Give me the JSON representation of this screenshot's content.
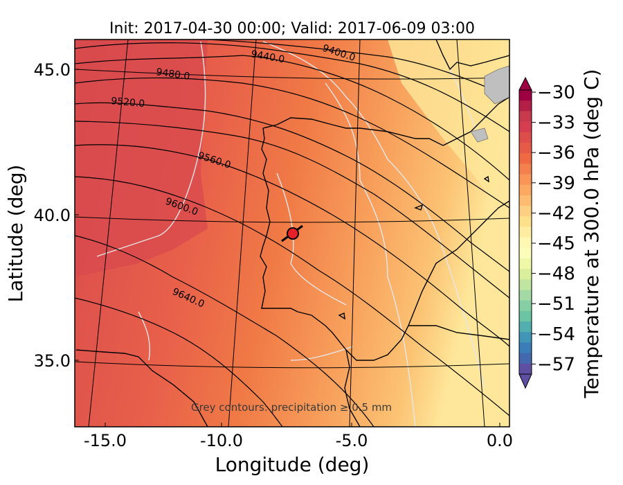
{
  "title": "Init: 2017-04-30 00:00; Valid: 2017-06-09 03:00",
  "axes": {
    "xlabel": "Longitude (deg)",
    "ylabel": "Latitude (deg)",
    "xticks": [
      "-15.0",
      "-10.0",
      "-5.0",
      "0.0"
    ],
    "yticks": [
      "45.0",
      "40.0",
      "35.0"
    ]
  },
  "colorbar": {
    "label": "Temperature at 300.0 hPa (deg C)",
    "ticks": [
      "−30",
      "−33",
      "−36",
      "−39",
      "−42",
      "−45",
      "−48",
      "−51",
      "−54",
      "−57"
    ],
    "colors_top_to_bottom": [
      "#9e0142",
      "#b41f48",
      "#c73a4e",
      "#d53e4f",
      "#dd4e4b",
      "#e55b48",
      "#ef6a43",
      "#f4804d",
      "#f89557",
      "#fba862",
      "#fdbc6f",
      "#fdcf82",
      "#fee08b",
      "#feeda0",
      "#fff8b4",
      "#fbfdbb",
      "#eef8a7",
      "#d9ef9b",
      "#bfe5a0",
      "#a3d9a4",
      "#86cfa5",
      "#6bc4a4",
      "#53aeb0",
      "#4196b8",
      "#3a7db8",
      "#4468ad",
      "#5e4fa2"
    ]
  },
  "contour_labels": [
    "9400.0",
    "9440.0",
    "9480.0",
    "9520.0",
    "9560.0",
    "9600.0",
    "9640.0"
  ],
  "annotation": "Grey contours: precipitation ≥ 0.5 mm",
  "colors": {
    "warm": "#d84a4d",
    "mid": "#f07a46",
    "light": "#fbb86c",
    "pale": "#fee79a",
    "precip": "#e6e6e6"
  }
}
